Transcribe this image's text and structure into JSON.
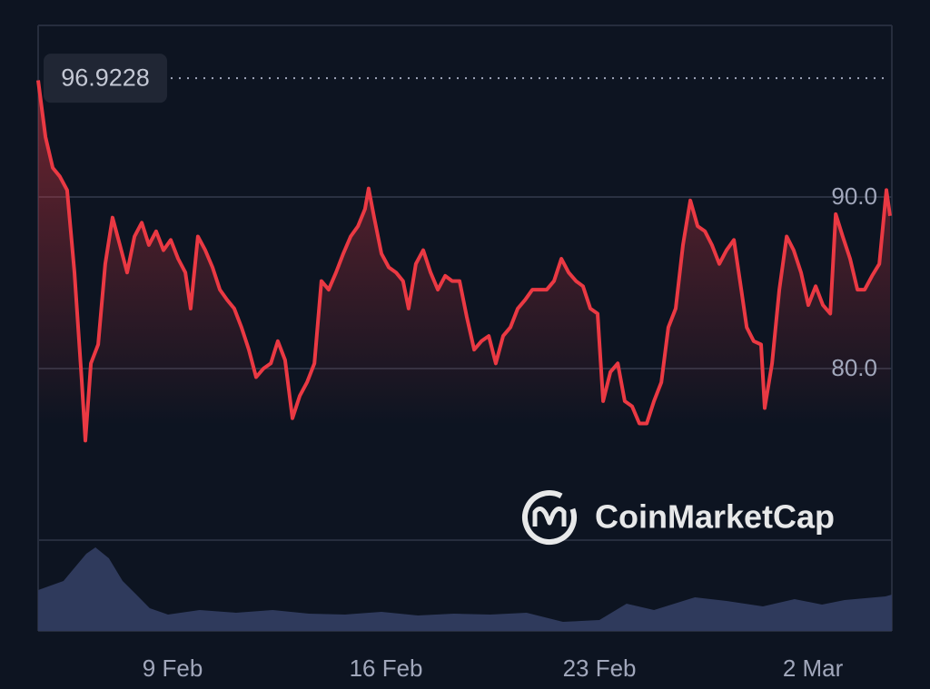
{
  "chart_data": {
    "type": "line",
    "color": "#ea3943",
    "xlim": [
      4.59,
      32.59
    ],
    "ylim": [
      70,
      100
    ],
    "xticks": [
      {
        "value": 9,
        "label": "9 Feb"
      },
      {
        "value": 16,
        "label": "16 Feb"
      },
      {
        "value": 23,
        "label": "23 Feb"
      },
      {
        "value": 30,
        "label": "2 Mar"
      }
    ],
    "yticks": [
      {
        "value": 80,
        "label": "80.0"
      },
      {
        "value": 90,
        "label": "90.0"
      }
    ],
    "grid": true,
    "max_label": 96.9228,
    "watermark": "CoinMarketCap",
    "x": [
      4.59,
      4.83,
      5.07,
      5.3,
      5.54,
      5.78,
      6.02,
      6.14,
      6.32,
      6.56,
      6.79,
      7.03,
      7.27,
      7.51,
      7.75,
      7.99,
      8.22,
      8.46,
      8.7,
      8.94,
      9.18,
      9.42,
      9.59,
      9.83,
      10.07,
      10.31,
      10.55,
      10.79,
      11.02,
      11.26,
      11.5,
      11.74,
      11.98,
      12.22,
      12.45,
      12.69,
      12.93,
      13.17,
      13.41,
      13.65,
      13.88,
      14.12,
      14.36,
      14.6,
      14.84,
      15.08,
      15.31,
      15.43,
      15.61,
      15.85,
      16.09,
      16.33,
      16.56,
      16.74,
      16.98,
      17.22,
      17.46,
      17.7,
      17.94,
      18.17,
      18.41,
      18.65,
      18.89,
      19.13,
      19.37,
      19.6,
      19.84,
      20.08,
      20.32,
      20.56,
      20.8,
      21.03,
      21.27,
      21.51,
      21.75,
      21.99,
      22.23,
      22.46,
      22.7,
      22.94,
      23.12,
      23.36,
      23.6,
      23.83,
      24.07,
      24.31,
      24.55,
      24.79,
      25.03,
      25.26,
      25.5,
      25.74,
      25.98,
      26.22,
      26.46,
      26.69,
      26.93,
      27.17,
      27.41,
      27.65,
      27.83,
      28.06,
      28.3,
      28.42,
      28.66,
      28.9,
      29.14,
      29.37,
      29.61,
      29.85,
      30.09,
      30.33,
      30.57,
      30.75,
      30.98,
      31.22,
      31.46,
      31.7,
      31.94,
      32.18,
      32.41,
      32.53
    ],
    "values": [
      96.8,
      93.5,
      91.7,
      91.2,
      90.4,
      85.6,
      79.3,
      75.8,
      80.3,
      81.4,
      86.1,
      88.8,
      87.2,
      85.6,
      87.7,
      88.5,
      87.2,
      88.0,
      86.9,
      87.5,
      86.4,
      85.6,
      83.5,
      87.7,
      86.9,
      85.9,
      84.6,
      84.0,
      83.5,
      82.4,
      81.1,
      79.5,
      80.0,
      80.3,
      81.6,
      80.5,
      77.1,
      78.4,
      79.2,
      80.3,
      85.1,
      84.6,
      85.6,
      86.7,
      87.7,
      88.3,
      89.3,
      90.5,
      88.8,
      86.7,
      85.9,
      85.6,
      85.1,
      83.5,
      86.1,
      86.9,
      85.6,
      84.6,
      85.4,
      85.1,
      85.1,
      83.0,
      81.1,
      81.6,
      81.9,
      80.3,
      81.9,
      82.4,
      83.5,
      84.0,
      84.6,
      84.6,
      84.6,
      85.1,
      86.4,
      85.6,
      85.1,
      84.8,
      83.5,
      83.2,
      78.1,
      79.8,
      80.3,
      78.1,
      77.8,
      76.8,
      76.8,
      78.1,
      79.2,
      82.4,
      83.5,
      87.2,
      89.8,
      88.3,
      88.0,
      87.2,
      86.1,
      86.9,
      87.5,
      84.6,
      82.4,
      81.6,
      81.4,
      77.7,
      80.3,
      84.6,
      87.7,
      86.9,
      85.6,
      83.7,
      84.8,
      83.7,
      83.2,
      89.0,
      87.7,
      86.4,
      84.6,
      84.6,
      85.4,
      86.1,
      90.4,
      88.9
    ],
    "volume": {
      "color": "#2f3a5c",
      "vlim": [
        0,
        100
      ],
      "x": [
        4.59,
        5.42,
        6.17,
        6.47,
        6.91,
        7.36,
        7.81,
        8.25,
        8.85,
        9.89,
        11.08,
        12.28,
        13.47,
        14.66,
        15.85,
        17.04,
        18.23,
        19.42,
        20.61,
        21.8,
        23.0,
        23.89,
        24.79,
        26.13,
        27.17,
        28.36,
        29.4,
        30.3,
        31.04,
        32.38,
        32.59
      ],
      "values": [
        45,
        55,
        85,
        92,
        80,
        55,
        40,
        25,
        18,
        23,
        20,
        23,
        19,
        18,
        21,
        17,
        19,
        18,
        20,
        10,
        12,
        30,
        23,
        37,
        33,
        27,
        35,
        29,
        34,
        38,
        40
      ]
    }
  }
}
